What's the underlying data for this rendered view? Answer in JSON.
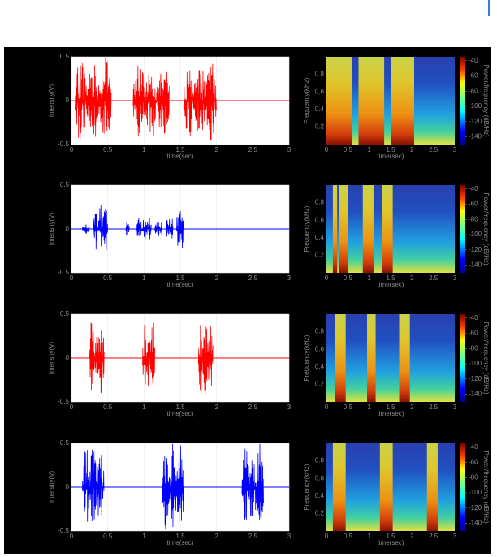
{
  "chart_data": [
    {
      "type": "line",
      "color": "#ff0000",
      "xlabel": "time(sec)",
      "ylabel": "Intensity(V)",
      "xlim": [
        0,
        3
      ],
      "xticks": [
        0,
        0.5,
        1,
        1.5,
        2,
        2.5,
        3
      ],
      "ylim": [
        -0.5,
        0.5
      ],
      "yticks": [
        -0.5,
        0,
        0.5
      ],
      "grid": true,
      "bursts": [
        {
          "start": 0.05,
          "end": 0.55,
          "amp": 0.5
        },
        {
          "start": 0.85,
          "end": 1.35,
          "amp": 0.45
        },
        {
          "start": 1.55,
          "end": 2.0,
          "amp": 0.45
        }
      ]
    },
    {
      "type": "spectrogram",
      "xlabel": "time(sec)",
      "ylabel": "Frequency(kHz)",
      "xlim": [
        0,
        3
      ],
      "xticks": [
        0,
        0.5,
        1,
        1.5,
        2,
        2.5,
        3
      ],
      "ylim": [
        0,
        1
      ],
      "yticks": [
        0.2,
        0.4,
        0.6,
        0.8
      ],
      "colorbar": {
        "label": "Power/frequency (dB/Hz)",
        "lim": [
          -150,
          -35
        ],
        "ticks": [
          -40,
          -60,
          -80,
          -100,
          -120,
          -140
        ]
      },
      "bursts": [
        {
          "start": 0.0,
          "end": 0.6
        },
        {
          "start": 0.75,
          "end": 1.35
        },
        {
          "start": 1.5,
          "end": 2.05
        }
      ]
    },
    {
      "type": "line",
      "color": "#0000ff",
      "xlabel": "time(sec)",
      "ylabel": "Intensity(V)",
      "xlim": [
        0,
        3
      ],
      "xticks": [
        0,
        0.5,
        1,
        1.5,
        2,
        2.5,
        3
      ],
      "ylim": [
        -0.5,
        0.5
      ],
      "yticks": [
        -0.5,
        0,
        0.5
      ],
      "grid": true,
      "bursts": [
        {
          "start": 0.15,
          "end": 0.25,
          "amp": 0.06
        },
        {
          "start": 0.3,
          "end": 0.5,
          "amp": 0.28
        },
        {
          "start": 0.75,
          "end": 0.8,
          "amp": 0.1
        },
        {
          "start": 0.9,
          "end": 1.1,
          "amp": 0.15
        },
        {
          "start": 1.15,
          "end": 1.25,
          "amp": 0.1
        },
        {
          "start": 1.3,
          "end": 1.4,
          "amp": 0.15
        },
        {
          "start": 1.45,
          "end": 1.55,
          "amp": 0.25
        }
      ]
    },
    {
      "type": "spectrogram",
      "xlabel": "time(sec)",
      "ylabel": "Frequency(kHz)",
      "xlim": [
        0,
        3
      ],
      "xticks": [
        0,
        0.5,
        1,
        1.5,
        2,
        2.5,
        3
      ],
      "ylim": [
        0,
        1
      ],
      "yticks": [
        0.2,
        0.4,
        0.6,
        0.8
      ],
      "colorbar": {
        "label": "Power/frequency (dB/Hz)",
        "lim": [
          -150,
          -35
        ],
        "ticks": [
          -40,
          -60,
          -80,
          -100,
          -120,
          -140
        ]
      },
      "bursts": [
        {
          "start": 0.15,
          "end": 0.25
        },
        {
          "start": 0.3,
          "end": 0.5
        },
        {
          "start": 0.85,
          "end": 1.1
        },
        {
          "start": 1.3,
          "end": 1.55
        }
      ]
    },
    {
      "type": "line",
      "color": "#ff0000",
      "xlabel": "time(sec)",
      "ylabel": "Intensity(V)",
      "xlim": [
        0,
        3
      ],
      "xticks": [
        0,
        0.5,
        1,
        1.5,
        2,
        2.5,
        3
      ],
      "ylim": [
        -0.5,
        0.5
      ],
      "yticks": [
        -0.5,
        0,
        0.5
      ],
      "grid": true,
      "bursts": [
        {
          "start": 0.25,
          "end": 0.45,
          "amp": 0.5
        },
        {
          "start": 0.98,
          "end": 1.15,
          "amp": 0.5
        },
        {
          "start": 1.75,
          "end": 1.95,
          "amp": 0.45
        }
      ]
    },
    {
      "type": "spectrogram",
      "xlabel": "time(sec)",
      "ylabel": "Frequency(kHz)",
      "xlim": [
        0,
        3
      ],
      "xticks": [
        0,
        0.5,
        1,
        1.5,
        2,
        2.5,
        3
      ],
      "ylim": [
        0,
        1
      ],
      "yticks": [
        0.2,
        0.4,
        0.6,
        0.8
      ],
      "colorbar": {
        "label": "Power/frequency (dB/Hz)",
        "lim": [
          -150,
          -35
        ],
        "ticks": [
          -40,
          -60,
          -80,
          -100,
          -120,
          -140
        ]
      },
      "bursts": [
        {
          "start": 0.2,
          "end": 0.45
        },
        {
          "start": 0.95,
          "end": 1.15
        },
        {
          "start": 1.7,
          "end": 1.95
        }
      ]
    },
    {
      "type": "line",
      "color": "#0000ff",
      "xlabel": "time(sec)",
      "ylabel": "Intensity(V)",
      "xlim": [
        0,
        3
      ],
      "xticks": [
        0,
        0.5,
        1,
        1.5,
        2,
        2.5,
        3
      ],
      "ylim": [
        -0.5,
        0.5
      ],
      "yticks": [
        -0.5,
        0,
        0.5
      ],
      "grid": true,
      "bursts": [
        {
          "start": 0.15,
          "end": 0.45,
          "amp": 0.5
        },
        {
          "start": 1.25,
          "end": 1.55,
          "amp": 0.5
        },
        {
          "start": 2.35,
          "end": 2.65,
          "amp": 0.5
        }
      ]
    },
    {
      "type": "spectrogram",
      "xlabel": "time(sec)",
      "ylabel": "Frequency(kHz)",
      "xlim": [
        0,
        3
      ],
      "xticks": [
        0,
        0.5,
        1,
        1.5,
        2,
        2.5,
        3
      ],
      "ylim": [
        0,
        1
      ],
      "yticks": [
        0.2,
        0.4,
        0.6,
        0.8
      ],
      "colorbar": {
        "label": "Power/frequency (dB/Hz)",
        "lim": [
          -150,
          -35
        ],
        "ticks": [
          -40,
          -60,
          -80,
          -100,
          -120,
          -140
        ]
      },
      "bursts": [
        {
          "start": 0.15,
          "end": 0.45
        },
        {
          "start": 1.25,
          "end": 1.55
        },
        {
          "start": 2.35,
          "end": 2.6
        }
      ]
    }
  ]
}
